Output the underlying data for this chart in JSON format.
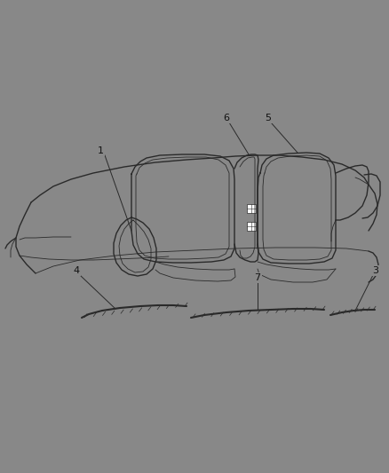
{
  "background_color": "#888888",
  "line_color": "#2a2a2a",
  "label_color": "#111111",
  "fig_width": 4.38,
  "fig_height": 5.33,
  "dpi": 100
}
